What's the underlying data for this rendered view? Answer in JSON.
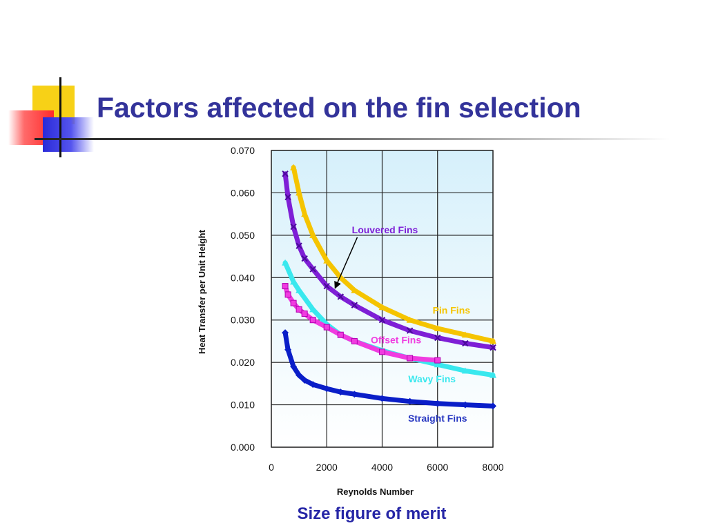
{
  "slide": {
    "title": "Factors affected on the fin selection",
    "caption": "Size figure of merit"
  },
  "colors": {
    "title": "#33339a",
    "caption": "#2626a6",
    "plot_bg_top": "#d6f0fb",
    "plot_bg_bottom": "#ffffff"
  },
  "chart_data": {
    "type": "line",
    "xlabel": "Reynolds Number",
    "ylabel": "Heat Transfer per Unit Height",
    "xlim": [
      0,
      8000
    ],
    "ylim": [
      0,
      0.07
    ],
    "x_ticks": [
      "0",
      "2000",
      "4000",
      "6000",
      "8000"
    ],
    "y_ticks": [
      "0.000",
      "0.010",
      "0.020",
      "0.030",
      "0.040",
      "0.050",
      "0.060",
      "0.070"
    ],
    "grid": true,
    "series": [
      {
        "name": "Pin Fins",
        "color": "#f5c400",
        "marker": "triangle",
        "x": [
          800,
          1000,
          1200,
          1500,
          2000,
          2500,
          3000,
          4000,
          5000,
          6000,
          7000,
          8000
        ],
        "y": [
          0.066,
          0.06,
          0.055,
          0.05,
          0.044,
          0.04,
          0.037,
          0.033,
          0.03,
          0.028,
          0.0265,
          0.025
        ]
      },
      {
        "name": "Louvered Fins",
        "color": "#7e1fd6",
        "marker": "star",
        "x": [
          500,
          600,
          800,
          1000,
          1200,
          1500,
          2000,
          2500,
          3000,
          4000,
          5000,
          6000,
          7000,
          8000
        ],
        "y": [
          0.0645,
          0.059,
          0.052,
          0.0475,
          0.0445,
          0.042,
          0.038,
          0.0355,
          0.0335,
          0.03,
          0.0275,
          0.0258,
          0.0245,
          0.0235
        ]
      },
      {
        "name": "Wavy Fins",
        "color": "#39e8ee",
        "marker": "triangle",
        "x": [
          500,
          800,
          1000,
          1500,
          2000,
          2500,
          3000,
          4000,
          5000,
          6000,
          7000,
          8000
        ],
        "y": [
          0.0435,
          0.039,
          0.037,
          0.0325,
          0.029,
          0.0265,
          0.025,
          0.0228,
          0.021,
          0.0195,
          0.018,
          0.017
        ]
      },
      {
        "name": "Offset Fins",
        "color": "#f03ce0",
        "marker": "square",
        "x": [
          500,
          600,
          800,
          1000,
          1200,
          1500,
          2000,
          2500,
          3000,
          4000,
          5000,
          6000
        ],
        "y": [
          0.038,
          0.036,
          0.034,
          0.0325,
          0.0315,
          0.03,
          0.0283,
          0.0265,
          0.025,
          0.0225,
          0.021,
          0.0205
        ]
      },
      {
        "name": "Straight Fins",
        "color": "#0a1ec8",
        "marker": "diamond",
        "x": [
          500,
          600,
          800,
          1000,
          1200,
          1500,
          2000,
          2500,
          3000,
          4000,
          5000,
          6000,
          7000,
          8000
        ],
        "y": [
          0.027,
          0.023,
          0.019,
          0.017,
          0.0158,
          0.0148,
          0.0138,
          0.013,
          0.0125,
          0.0115,
          0.0108,
          0.0103,
          0.01,
          0.0097
        ]
      }
    ],
    "annotations": [
      {
        "text": "Louvered Fins",
        "series": "Louvered Fins",
        "color": "#7e1fd6",
        "arrow_to_x": 2300,
        "arrow_to_y": 0.0375,
        "label_x": 4100,
        "label_y": 0.0505
      },
      {
        "text": "Pin Fins",
        "series": "Pin Fins",
        "color": "#f5c400",
        "label_x": 6500,
        "label_y": 0.0315
      },
      {
        "text": "Offset Fins",
        "series": "Offset Fins",
        "color": "#f03ce0",
        "label_x": 4500,
        "label_y": 0.0245
      },
      {
        "text": "Wavy Fins",
        "series": "Wavy Fins",
        "color": "#39e8ee",
        "label_x": 5800,
        "label_y": 0.0153
      },
      {
        "text": "Straight Fins",
        "series": "Straight Fins",
        "color": "#2a3ac2",
        "label_x": 6000,
        "label_y": 0.006
      }
    ]
  }
}
